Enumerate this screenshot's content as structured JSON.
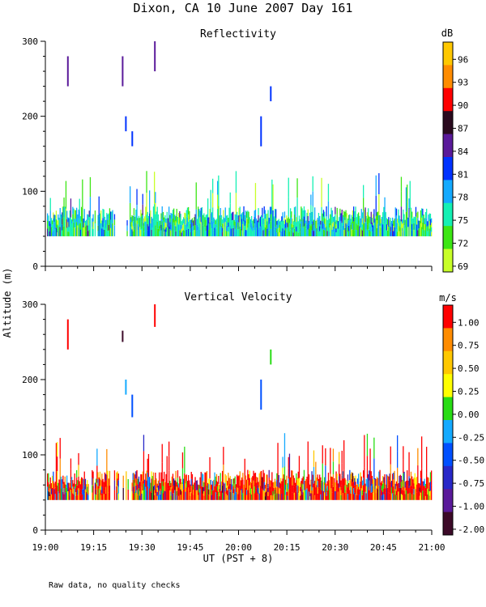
{
  "title": "Dixon, CA 10 June 2007  Day 161",
  "ylabel": "Altitude (m)",
  "xlabel": "UT  (PST + 8)",
  "footnote": "Raw data, no quality checks",
  "x_ticks": [
    "19:00",
    "19:15",
    "19:30",
    "19:45",
    "20:00",
    "20:15",
    "20:30",
    "20:45",
    "21:00"
  ],
  "y_ticks": [
    "0",
    "100",
    "200",
    "300"
  ],
  "chart_data": [
    {
      "type": "heatmap",
      "title": "Reflectivity",
      "xlabel": "UT  (PST + 8)",
      "ylabel": "Altitude (m)",
      "xlim": [
        "19:00",
        "21:00"
      ],
      "ylim": [
        0,
        300
      ],
      "colorbar": {
        "unit": "dB",
        "labels": [
          "96",
          "93",
          "90",
          "87",
          "84",
          "81",
          "78",
          "75",
          "72",
          "69"
        ],
        "colors": [
          "#ffc800",
          "#ff8c00",
          "#ff0000",
          "#2a0a1e",
          "#5a1a9a",
          "#0032ff",
          "#14aaff",
          "#14f0b4",
          "#3ce614",
          "#c8ff28"
        ]
      },
      "ground_echo_altitude_range_m": [
        40,
        80
      ],
      "plumes": [
        {
          "time": "19:07",
          "alt_low": 240,
          "alt_high": 280,
          "color": "#5a1a9a"
        },
        {
          "time": "19:24",
          "alt_low": 240,
          "alt_high": 280,
          "color": "#5a1a9a"
        },
        {
          "time": "19:25",
          "alt_low": 180,
          "alt_high": 200,
          "color": "#0032ff"
        },
        {
          "time": "19:27",
          "alt_low": 160,
          "alt_high": 180,
          "color": "#0032ff"
        },
        {
          "time": "19:34",
          "alt_low": 260,
          "alt_high": 300,
          "color": "#5a1a9a"
        },
        {
          "time": "20:07",
          "alt_low": 160,
          "alt_high": 200,
          "color": "#0032ff"
        },
        {
          "time": "20:10",
          "alt_low": 220,
          "alt_high": 240,
          "color": "#0032ff"
        }
      ]
    },
    {
      "type": "heatmap",
      "title": "Vertical Velocity",
      "xlabel": "UT  (PST + 8)",
      "ylabel": "Altitude (m)",
      "xlim": [
        "19:00",
        "21:00"
      ],
      "ylim": [
        0,
        300
      ],
      "colorbar": {
        "unit": "m/s",
        "labels": [
          "1.00",
          "0.75",
          "0.50",
          "0.25",
          "0.00",
          "-0.25",
          "-0.50",
          "-0.75",
          "-1.00",
          "-2.00"
        ],
        "colors": [
          "#ff0000",
          "#ff8c00",
          "#ffc800",
          "#ffff00",
          "#28dc14",
          "#14aaff",
          "#0050ff",
          "#2828c8",
          "#5a1a9a",
          "#3c0a28"
        ]
      },
      "ground_echo_altitude_range_m": [
        40,
        80
      ],
      "plumes": [
        {
          "time": "19:07",
          "alt_low": 240,
          "alt_high": 280,
          "color": "#ff0000"
        },
        {
          "time": "19:24",
          "alt_low": 250,
          "alt_high": 265,
          "color": "#3c0a28"
        },
        {
          "time": "19:25",
          "alt_low": 180,
          "alt_high": 200,
          "color": "#14aaff"
        },
        {
          "time": "19:27",
          "alt_low": 150,
          "alt_high": 180,
          "color": "#0050ff"
        },
        {
          "time": "19:34",
          "alt_low": 270,
          "alt_high": 300,
          "color": "#ff0000"
        },
        {
          "time": "20:07",
          "alt_low": 160,
          "alt_high": 200,
          "color": "#0050ff"
        },
        {
          "time": "20:10",
          "alt_low": 220,
          "alt_high": 240,
          "color": "#28dc14"
        }
      ]
    }
  ]
}
